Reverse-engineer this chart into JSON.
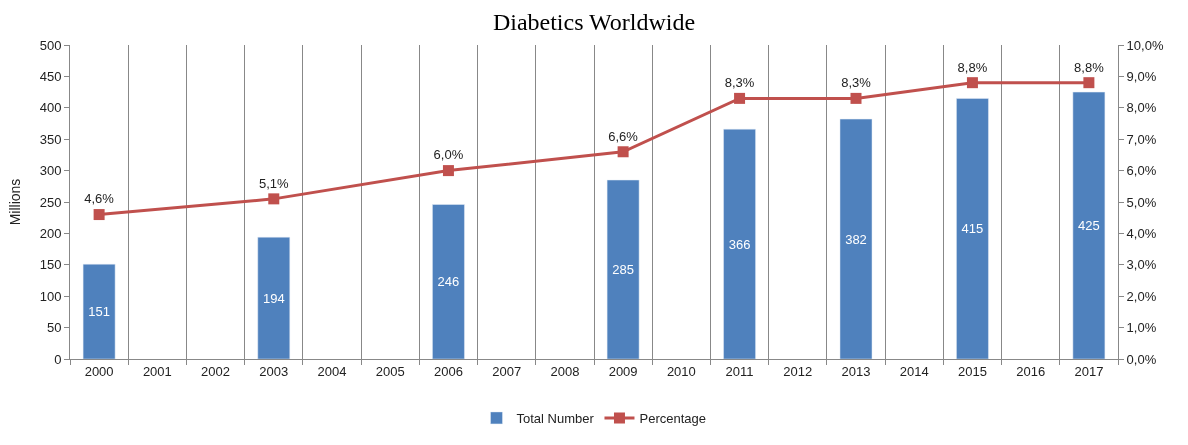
{
  "chart_data": {
    "type": "bar",
    "title": "Diabetics Worldwide",
    "ylabel": "Millions",
    "categories": [
      "2000",
      "2001",
      "2002",
      "2003",
      "2004",
      "2005",
      "2006",
      "2007",
      "2008",
      "2009",
      "2010",
      "2011",
      "2012",
      "2013",
      "2014",
      "2015",
      "2016",
      "2017"
    ],
    "series": [
      {
        "name": "Total Number",
        "color": "#4f81bd",
        "values": [
          151,
          null,
          null,
          194,
          null,
          null,
          246,
          null,
          null,
          285,
          null,
          366,
          null,
          382,
          null,
          415,
          null,
          425
        ],
        "value_labels": [
          "151",
          null,
          null,
          "194",
          null,
          null,
          "246",
          null,
          null,
          "285",
          null,
          "366",
          null,
          "382",
          null,
          "415",
          null,
          "425"
        ]
      },
      {
        "name": "Percentage",
        "type": "line",
        "axis": "y2",
        "color": "#c0504d",
        "marker": "square",
        "line_style": "solid",
        "values": [
          4.6,
          null,
          null,
          5.1,
          null,
          null,
          6.0,
          null,
          null,
          6.6,
          null,
          8.3,
          null,
          8.3,
          null,
          8.8,
          null,
          8.8
        ],
        "value_labels": [
          "4,6%",
          null,
          null,
          "5,1%",
          null,
          null,
          "6,0%",
          null,
          null,
          "6,6%",
          null,
          "8,3%",
          null,
          "8,3%",
          null,
          "8,8%",
          null,
          "8,8%"
        ]
      }
    ],
    "ylim": [
      0,
      500
    ],
    "yticks": [
      0,
      50,
      100,
      150,
      200,
      250,
      300,
      350,
      400,
      450,
      500
    ],
    "y2lim": [
      0,
      10
    ],
    "y2ticks": [
      {
        "value": 0,
        "label": "0,0%"
      },
      {
        "value": 1,
        "label": "1,0%"
      },
      {
        "value": 2,
        "label": "2,0%"
      },
      {
        "value": 3,
        "label": "3,0%"
      },
      {
        "value": 4,
        "label": "4,0%"
      },
      {
        "value": 5,
        "label": "5,0%"
      },
      {
        "value": 6,
        "label": "6,0%"
      },
      {
        "value": 7,
        "label": "7,0%"
      },
      {
        "value": 8,
        "label": "8,0%"
      },
      {
        "value": 9,
        "label": "9,0%"
      },
      {
        "value": 10,
        "label": "10,0%"
      }
    ],
    "grid": "x",
    "legend": "bottom"
  }
}
